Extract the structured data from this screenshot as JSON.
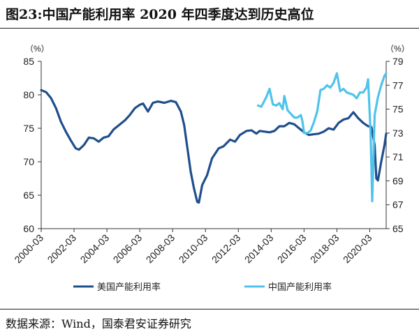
{
  "title": "图23:中国产能利用率 2020 年四季度达到历史高位",
  "source": "数据来源：Wind，国泰君安证券研究",
  "colors": {
    "us": "#1f4e8c",
    "cn": "#4fc3ec"
  },
  "chart_data": {
    "type": "line",
    "left_unit": "（%）",
    "right_unit": "（%）",
    "left_axis": {
      "min": 60,
      "max": 85,
      "ticks": [
        60,
        65,
        70,
        75,
        80,
        85
      ]
    },
    "right_axis": {
      "min": 65,
      "max": 79,
      "ticks": [
        65,
        67,
        69,
        71,
        73,
        75,
        77,
        79
      ]
    },
    "x_tick_labels": [
      "2000-03",
      "2002-03",
      "2004-03",
      "2006-03",
      "2008-03",
      "2010-03",
      "2012-03",
      "2014-03",
      "2016-03",
      "2018-03",
      "2020-03"
    ],
    "x_range": [
      2000.0,
      2021.0
    ],
    "grid": false,
    "legend_position": "bottom",
    "series": [
      {
        "name": "美国产能利用率",
        "axis": "left",
        "color": "#1f4e8c",
        "points": [
          [
            2000.0,
            80.7
          ],
          [
            2000.3,
            80.4
          ],
          [
            2000.6,
            79.5
          ],
          [
            2000.9,
            78.0
          ],
          [
            2001.2,
            76.0
          ],
          [
            2001.5,
            74.5
          ],
          [
            2001.8,
            73.2
          ],
          [
            2002.1,
            72.0
          ],
          [
            2002.3,
            71.8
          ],
          [
            2002.6,
            72.5
          ],
          [
            2002.9,
            73.6
          ],
          [
            2003.2,
            73.5
          ],
          [
            2003.5,
            73.0
          ],
          [
            2003.8,
            73.6
          ],
          [
            2004.1,
            73.8
          ],
          [
            2004.4,
            74.8
          ],
          [
            2004.8,
            75.6
          ],
          [
            2005.1,
            76.2
          ],
          [
            2005.4,
            77.0
          ],
          [
            2005.7,
            78.0
          ],
          [
            2006.0,
            78.5
          ],
          [
            2006.2,
            78.7
          ],
          [
            2006.5,
            77.5
          ],
          [
            2006.8,
            78.8
          ],
          [
            2007.1,
            79.0
          ],
          [
            2007.5,
            78.8
          ],
          [
            2007.9,
            79.1
          ],
          [
            2008.2,
            78.9
          ],
          [
            2008.5,
            77.5
          ],
          [
            2008.7,
            75.5
          ],
          [
            2008.9,
            72.0
          ],
          [
            2009.1,
            68.5
          ],
          [
            2009.3,
            66.0
          ],
          [
            2009.5,
            64.0
          ],
          [
            2009.6,
            63.9
          ],
          [
            2009.8,
            66.5
          ],
          [
            2010.1,
            68.0
          ],
          [
            2010.4,
            70.5
          ],
          [
            2010.8,
            72.0
          ],
          [
            2011.1,
            72.3
          ],
          [
            2011.5,
            73.3
          ],
          [
            2011.8,
            73.0
          ],
          [
            2012.1,
            74.0
          ],
          [
            2012.5,
            74.6
          ],
          [
            2012.8,
            74.7
          ],
          [
            2013.1,
            74.2
          ],
          [
            2013.3,
            74.6
          ],
          [
            2013.6,
            74.5
          ],
          [
            2013.9,
            74.4
          ],
          [
            2014.2,
            74.6
          ],
          [
            2014.5,
            75.3
          ],
          [
            2014.8,
            75.3
          ],
          [
            2015.1,
            75.8
          ],
          [
            2015.4,
            75.6
          ],
          [
            2015.7,
            75.0
          ],
          [
            2016.0,
            74.4
          ],
          [
            2016.3,
            74.0
          ],
          [
            2016.6,
            74.1
          ],
          [
            2016.9,
            74.2
          ],
          [
            2017.2,
            74.5
          ],
          [
            2017.5,
            75.0
          ],
          [
            2017.8,
            74.8
          ],
          [
            2018.1,
            75.8
          ],
          [
            2018.4,
            76.3
          ],
          [
            2018.7,
            76.5
          ],
          [
            2019.0,
            77.4
          ],
          [
            2019.3,
            76.5
          ],
          [
            2019.6,
            75.8
          ],
          [
            2019.9,
            75.3
          ],
          [
            2020.1,
            75.2
          ],
          [
            2020.3,
            72.5
          ],
          [
            2020.4,
            67.5
          ],
          [
            2020.5,
            67.2
          ],
          [
            2020.7,
            70.0
          ],
          [
            2020.9,
            72.5
          ],
          [
            2021.0,
            74.2
          ]
        ]
      },
      {
        "name": "中国产能利用率",
        "axis": "right",
        "color": "#4fc3ec",
        "points": [
          [
            2013.2,
            75.3
          ],
          [
            2013.4,
            75.2
          ],
          [
            2013.7,
            76.0
          ],
          [
            2013.9,
            76.7
          ],
          [
            2014.1,
            75.4
          ],
          [
            2014.3,
            75.3
          ],
          [
            2014.5,
            75.5
          ],
          [
            2014.7,
            75.0
          ],
          [
            2014.8,
            76.1
          ],
          [
            2015.0,
            74.9
          ],
          [
            2015.2,
            74.6
          ],
          [
            2015.4,
            74.3
          ],
          [
            2015.6,
            74.3
          ],
          [
            2015.8,
            74.5
          ],
          [
            2015.9,
            74.0
          ],
          [
            2016.0,
            73.0
          ],
          [
            2016.2,
            73.0
          ],
          [
            2016.4,
            73.2
          ],
          [
            2016.6,
            73.9
          ],
          [
            2016.8,
            74.8
          ],
          [
            2017.0,
            76.6
          ],
          [
            2017.2,
            76.7
          ],
          [
            2017.4,
            77.0
          ],
          [
            2017.6,
            76.8
          ],
          [
            2017.8,
            77.2
          ],
          [
            2018.0,
            78.0
          ],
          [
            2018.2,
            76.5
          ],
          [
            2018.4,
            76.7
          ],
          [
            2018.6,
            76.4
          ],
          [
            2018.8,
            76.3
          ],
          [
            2019.0,
            76.2
          ],
          [
            2019.2,
            75.9
          ],
          [
            2019.4,
            76.4
          ],
          [
            2019.6,
            76.4
          ],
          [
            2019.8,
            76.8
          ],
          [
            2019.9,
            77.5
          ],
          [
            2020.05,
            73.0
          ],
          [
            2020.15,
            67.3
          ],
          [
            2020.3,
            74.5
          ],
          [
            2020.5,
            76.0
          ],
          [
            2020.7,
            77.0
          ],
          [
            2020.9,
            77.8
          ],
          [
            2021.0,
            78.0
          ]
        ]
      }
    ]
  }
}
